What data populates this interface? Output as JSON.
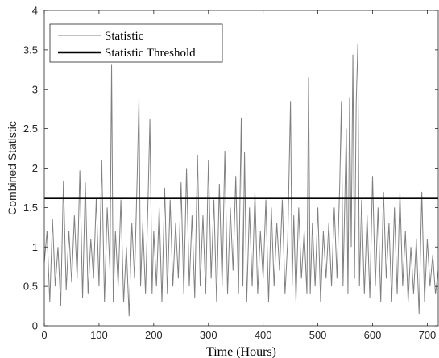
{
  "chart_data": {
    "type": "line",
    "xlabel": "Time (Hours)",
    "ylabel": "Combined Statistic",
    "xlim": [
      0,
      720
    ],
    "ylim": [
      0,
      4
    ],
    "xticks": [
      "0",
      "100",
      "200",
      "300",
      "400",
      "500",
      "600",
      "700"
    ],
    "yticks": [
      "0",
      "0.5",
      "1",
      "1.5",
      "2",
      "2.5",
      "3",
      "3.5",
      "4"
    ],
    "grid": false,
    "legend_position": "top-left",
    "series": [
      {
        "name": "Statistic",
        "color": "#808080",
        "points": [
          [
            0,
            0.8
          ],
          [
            5,
            1.2
          ],
          [
            10,
            0.3
          ],
          [
            15,
            1.35
          ],
          [
            20,
            0.5
          ],
          [
            25,
            1.0
          ],
          [
            30,
            0.25
          ],
          [
            35,
            1.84
          ],
          [
            40,
            0.45
          ],
          [
            45,
            1.2
          ],
          [
            50,
            0.55
          ],
          [
            55,
            1.4
          ],
          [
            60,
            0.6
          ],
          [
            65,
            1.97
          ],
          [
            70,
            0.35
          ],
          [
            75,
            1.82
          ],
          [
            80,
            0.4
          ],
          [
            85,
            1.1
          ],
          [
            90,
            0.6
          ],
          [
            95,
            1.62
          ],
          [
            100,
            0.5
          ],
          [
            105,
            2.1
          ],
          [
            110,
            0.3
          ],
          [
            115,
            1.5
          ],
          [
            120,
            0.7
          ],
          [
            123,
            3.32
          ],
          [
            126,
            0.3
          ],
          [
            130,
            1.2
          ],
          [
            135,
            0.5
          ],
          [
            140,
            1.6
          ],
          [
            145,
            0.3
          ],
          [
            150,
            1.0
          ],
          [
            155,
            0.12
          ],
          [
            160,
            1.3
          ],
          [
            165,
            0.6
          ],
          [
            170,
            1.95
          ],
          [
            173,
            2.88
          ],
          [
            176,
            0.5
          ],
          [
            180,
            1.3
          ],
          [
            185,
            0.4
          ],
          [
            190,
            1.7
          ],
          [
            193,
            2.62
          ],
          [
            197,
            0.4
          ],
          [
            200,
            1.2
          ],
          [
            205,
            0.5
          ],
          [
            210,
            1.5
          ],
          [
            215,
            0.3
          ],
          [
            220,
            1.75
          ],
          [
            225,
            0.4
          ],
          [
            230,
            1.6
          ],
          [
            235,
            0.5
          ],
          [
            240,
            1.3
          ],
          [
            245,
            0.6
          ],
          [
            250,
            1.82
          ],
          [
            255,
            0.4
          ],
          [
            260,
            2.0
          ],
          [
            265,
            0.5
          ],
          [
            270,
            1.4
          ],
          [
            275,
            0.35
          ],
          [
            280,
            2.17
          ],
          [
            285,
            0.5
          ],
          [
            290,
            1.4
          ],
          [
            295,
            0.4
          ],
          [
            300,
            2.1
          ],
          [
            305,
            0.6
          ],
          [
            310,
            1.6
          ],
          [
            315,
            0.3
          ],
          [
            320,
            1.8
          ],
          [
            325,
            0.5
          ],
          [
            330,
            2.22
          ],
          [
            335,
            0.4
          ],
          [
            340,
            1.5
          ],
          [
            345,
            0.7
          ],
          [
            350,
            1.9
          ],
          [
            355,
            0.4
          ],
          [
            360,
            2.64
          ],
          [
            363,
            0.5
          ],
          [
            366,
            2.2
          ],
          [
            370,
            0.3
          ],
          [
            375,
            1.5
          ],
          [
            380,
            0.5
          ],
          [
            385,
            1.7
          ],
          [
            390,
            0.4
          ],
          [
            395,
            1.2
          ],
          [
            400,
            0.6
          ],
          [
            405,
            1.6
          ],
          [
            410,
            0.3
          ],
          [
            415,
            1.5
          ],
          [
            420,
            0.5
          ],
          [
            425,
            1.3
          ],
          [
            430,
            0.7
          ],
          [
            435,
            1.6
          ],
          [
            440,
            0.4
          ],
          [
            445,
            1.1
          ],
          [
            450,
            2.85
          ],
          [
            453,
            0.5
          ],
          [
            456,
            1.4
          ],
          [
            460,
            0.3
          ],
          [
            465,
            1.5
          ],
          [
            470,
            0.6
          ],
          [
            475,
            1.2
          ],
          [
            480,
            0.4
          ],
          [
            483,
            3.15
          ],
          [
            486,
            0.4
          ],
          [
            490,
            1.3
          ],
          [
            495,
            0.5
          ],
          [
            500,
            1.5
          ],
          [
            505,
            0.3
          ],
          [
            510,
            1.2
          ],
          [
            515,
            0.6
          ],
          [
            520,
            1.3
          ],
          [
            525,
            0.5
          ],
          [
            530,
            1.5
          ],
          [
            535,
            0.6
          ],
          [
            540,
            1.8
          ],
          [
            543,
            2.85
          ],
          [
            546,
            0.5
          ],
          [
            549,
            1.5
          ],
          [
            552,
            2.5
          ],
          [
            555,
            0.4
          ],
          [
            558,
            2.9
          ],
          [
            561,
            1.0
          ],
          [
            564,
            3.44
          ],
          [
            567,
            0.6
          ],
          [
            570,
            2.8
          ],
          [
            573,
            3.57
          ],
          [
            576,
            0.5
          ],
          [
            580,
            1.6
          ],
          [
            585,
            0.4
          ],
          [
            590,
            1.4
          ],
          [
            595,
            0.35
          ],
          [
            600,
            1.9
          ],
          [
            605,
            0.5
          ],
          [
            610,
            1.5
          ],
          [
            615,
            0.3
          ],
          [
            620,
            1.7
          ],
          [
            625,
            0.6
          ],
          [
            630,
            1.3
          ],
          [
            635,
            0.3
          ],
          [
            640,
            1.5
          ],
          [
            645,
            0.4
          ],
          [
            650,
            1.7
          ],
          [
            655,
            0.5
          ],
          [
            660,
            1.2
          ],
          [
            665,
            0.3
          ],
          [
            670,
            1.0
          ],
          [
            675,
            0.4
          ],
          [
            680,
            1.1
          ],
          [
            685,
            0.15
          ],
          [
            690,
            1.7
          ],
          [
            695,
            0.3
          ],
          [
            700,
            1.1
          ],
          [
            705,
            0.5
          ],
          [
            710,
            0.9
          ],
          [
            715,
            0.4
          ],
          [
            720,
            0.7
          ]
        ]
      },
      {
        "name": "Statistic Threshold",
        "color": "#000000",
        "points": [
          [
            0,
            1.62
          ],
          [
            720,
            1.62
          ]
        ]
      }
    ]
  }
}
